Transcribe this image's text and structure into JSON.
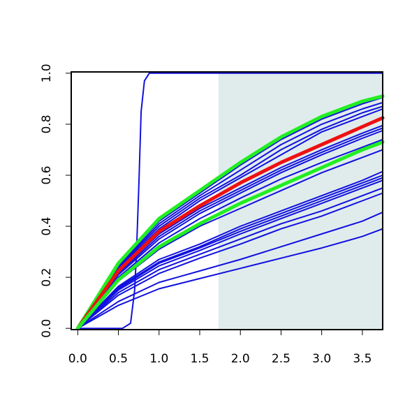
{
  "chart_data": {
    "type": "line",
    "title": "",
    "xlabel": "",
    "ylabel": "",
    "xlim": [
      -0.08,
      3.75
    ],
    "ylim": [
      -0.005,
      1.005
    ],
    "x_ticks": [
      0.0,
      0.5,
      1.0,
      1.5,
      2.0,
      2.5,
      3.0,
      3.5
    ],
    "x_tick_labels": [
      "0.0",
      "0.5",
      "1.0",
      "1.5",
      "2.0",
      "2.5",
      "3.0",
      "3.5"
    ],
    "y_ticks": [
      0.0,
      0.2,
      0.4,
      0.6,
      0.8,
      1.0
    ],
    "y_tick_labels": [
      "0.0",
      "0.2",
      "0.4",
      "0.6",
      "0.8",
      "1.0"
    ],
    "shaded_region": {
      "x_from": 1.73,
      "x_to": 3.75,
      "color": "#e0ecec"
    },
    "grid": false,
    "legend": "none",
    "colors": {
      "thin": "#1010e0",
      "red": "#ee1111",
      "green": "#22ee22"
    },
    "series": [
      {
        "color": "blue",
        "width": 2,
        "x": [
          0,
          0.5,
          1.0,
          1.5,
          2.0,
          2.5,
          3.0,
          3.5,
          3.75
        ],
        "y": [
          0,
          0.25,
          0.42,
          0.53,
          0.64,
          0.74,
          0.82,
          0.88,
          0.905
        ]
      },
      {
        "color": "blue",
        "width": 2,
        "x": [
          0,
          0.5,
          1.0,
          1.5,
          2.0,
          2.5,
          3.0,
          3.5,
          3.75
        ],
        "y": [
          0,
          0.245,
          0.41,
          0.52,
          0.62,
          0.72,
          0.8,
          0.86,
          0.885
        ]
      },
      {
        "color": "blue",
        "width": 2,
        "x": [
          0,
          0.5,
          1.0,
          1.5,
          2.0,
          2.5,
          3.0,
          3.5,
          3.75
        ],
        "y": [
          0,
          0.24,
          0.4,
          0.51,
          0.6,
          0.7,
          0.78,
          0.845,
          0.87
        ]
      },
      {
        "color": "blue",
        "width": 2,
        "x": [
          0,
          0.5,
          1.0,
          1.5,
          2.0,
          2.5,
          3.0,
          3.5,
          3.75
        ],
        "y": [
          0,
          0.235,
          0.39,
          0.5,
          0.59,
          0.68,
          0.77,
          0.83,
          0.86
        ]
      },
      {
        "color": "blue",
        "width": 2,
        "x": [
          0,
          0.5,
          1.0,
          1.5,
          2.0,
          2.5,
          3.0,
          3.5,
          3.75
        ],
        "y": [
          0,
          0.22,
          0.37,
          0.47,
          0.55,
          0.63,
          0.7,
          0.765,
          0.795
        ]
      },
      {
        "color": "blue",
        "width": 2,
        "x": [
          0,
          0.5,
          1.0,
          1.5,
          2.0,
          2.5,
          3.0,
          3.5,
          3.75
        ],
        "y": [
          0,
          0.215,
          0.36,
          0.46,
          0.54,
          0.62,
          0.69,
          0.755,
          0.785
        ]
      },
      {
        "color": "blue",
        "width": 2,
        "x": [
          0,
          0.5,
          1.0,
          1.5,
          2.0,
          2.5,
          3.0,
          3.5,
          3.75
        ],
        "y": [
          0,
          0.21,
          0.35,
          0.45,
          0.53,
          0.61,
          0.68,
          0.745,
          0.775
        ]
      },
      {
        "color": "blue",
        "width": 2,
        "x": [
          0,
          0.5,
          1.0,
          1.5,
          2.0,
          2.5,
          3.0,
          3.5,
          3.75
        ],
        "y": [
          0,
          0.2,
          0.335,
          0.43,
          0.51,
          0.585,
          0.65,
          0.71,
          0.74
        ]
      },
      {
        "color": "blue",
        "width": 2,
        "x": [
          0,
          0.5,
          1.0,
          1.5,
          2.0,
          2.5,
          3.0,
          3.5,
          3.75
        ],
        "y": [
          0,
          0.185,
          0.31,
          0.4,
          0.47,
          0.54,
          0.61,
          0.67,
          0.7
        ]
      },
      {
        "color": "blue",
        "width": 2,
        "x": [
          0,
          0.5,
          1.0,
          1.5,
          2.0,
          2.5,
          3.0,
          3.5,
          3.75
        ],
        "y": [
          0,
          0.165,
          0.27,
          0.33,
          0.4,
          0.46,
          0.52,
          0.58,
          0.615
        ]
      },
      {
        "color": "blue",
        "width": 2,
        "x": [
          0,
          0.5,
          1.0,
          1.5,
          2.0,
          2.5,
          3.0,
          3.5,
          3.75
        ],
        "y": [
          0,
          0.16,
          0.26,
          0.32,
          0.39,
          0.45,
          0.51,
          0.57,
          0.6
        ]
      },
      {
        "color": "blue",
        "width": 2,
        "x": [
          0,
          0.5,
          1.0,
          1.5,
          2.0,
          2.5,
          3.0,
          3.5,
          3.75
        ],
        "y": [
          0,
          0.155,
          0.255,
          0.315,
          0.38,
          0.44,
          0.5,
          0.56,
          0.59
        ]
      },
      {
        "color": "blue",
        "width": 2,
        "x": [
          0,
          0.5,
          1.0,
          1.5,
          2.0,
          2.5,
          3.0,
          3.5,
          3.75
        ],
        "y": [
          0,
          0.15,
          0.245,
          0.305,
          0.37,
          0.43,
          0.49,
          0.55,
          0.58
        ]
      },
      {
        "color": "blue",
        "width": 2,
        "x": [
          0,
          0.5,
          1.0,
          1.5,
          2.0,
          2.5,
          3.0,
          3.5,
          3.75
        ],
        "y": [
          0,
          0.14,
          0.23,
          0.29,
          0.35,
          0.41,
          0.46,
          0.52,
          0.55
        ]
      },
      {
        "color": "blue",
        "width": 2,
        "x": [
          0,
          0.5,
          1.0,
          1.5,
          2.0,
          2.5,
          3.0,
          3.5,
          3.75
        ],
        "y": [
          0,
          0.13,
          0.215,
          0.275,
          0.33,
          0.39,
          0.44,
          0.5,
          0.53
        ]
      },
      {
        "color": "blue",
        "width": 2,
        "x": [
          0,
          0.5,
          1.0,
          1.5,
          2.0,
          2.5,
          3.0,
          3.5,
          3.75
        ],
        "y": [
          0,
          0.105,
          0.18,
          0.225,
          0.27,
          0.32,
          0.37,
          0.42,
          0.455
        ]
      },
      {
        "color": "blue",
        "width": 2,
        "x": [
          0,
          0.5,
          1.0,
          1.5,
          2.0,
          2.5,
          3.0,
          3.5,
          3.75
        ],
        "y": [
          0,
          0.09,
          0.155,
          0.195,
          0.235,
          0.275,
          0.315,
          0.36,
          0.39
        ]
      },
      {
        "color": "blue",
        "width": 2,
        "x": [
          0,
          0.55,
          0.65,
          0.7,
          0.72,
          0.75,
          0.78,
          0.82,
          0.88,
          1.0,
          3.75
        ],
        "y": [
          0,
          0,
          0.02,
          0.15,
          0.28,
          0.55,
          0.85,
          0.97,
          1.0,
          1.0,
          1.0
        ]
      },
      {
        "color": "green",
        "width": 5,
        "x": [
          0,
          0.5,
          1.0,
          1.5,
          2.0,
          2.5,
          3.0,
          3.5,
          3.75
        ],
        "y": [
          0,
          0.255,
          0.43,
          0.54,
          0.65,
          0.75,
          0.83,
          0.89,
          0.91
        ]
      },
      {
        "color": "red",
        "width": 5,
        "x": [
          0,
          0.5,
          1.0,
          1.5,
          2.0,
          2.5,
          3.0,
          3.5,
          3.75
        ],
        "y": [
          0,
          0.225,
          0.38,
          0.48,
          0.57,
          0.65,
          0.72,
          0.79,
          0.825
        ]
      },
      {
        "color": "green",
        "width": 5,
        "x": [
          0,
          0.5,
          1.0,
          1.5,
          2.0,
          2.5,
          3.0,
          3.5,
          3.75
        ],
        "y": [
          0,
          0.19,
          0.32,
          0.41,
          0.49,
          0.56,
          0.63,
          0.7,
          0.73
        ]
      }
    ]
  }
}
